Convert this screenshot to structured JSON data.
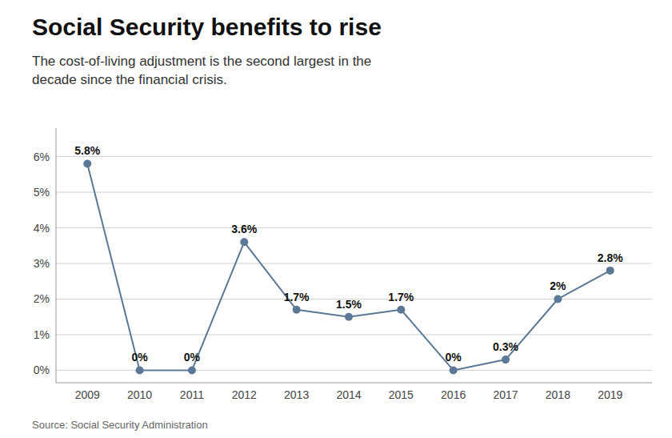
{
  "chart_data": {
    "type": "line",
    "title": "Social Security benefits to rise",
    "subtitle": "The cost-of-living adjustment is the second largest in the\ndecade since the financial crisis.",
    "source": "Source: Social Security Administration",
    "x": [
      2009,
      2010,
      2011,
      2012,
      2013,
      2014,
      2015,
      2016,
      2017,
      2018,
      2019
    ],
    "values": [
      5.8,
      0.0,
      0.0,
      3.6,
      1.7,
      1.5,
      1.7,
      0.0,
      0.3,
      2.0,
      2.8
    ],
    "value_labels": [
      "5.8%",
      "0%",
      "0%",
      "3.6%",
      "1.7%",
      "1.5%",
      "1.7%",
      "0%",
      "0.3%",
      "2%",
      "2.8%"
    ],
    "data_labels": true,
    "color": "#5b7896",
    "marker": "circle",
    "xlim": [
      2008.4,
      2019.8
    ],
    "xticks": [
      2009,
      2010,
      2011,
      2012,
      2013,
      2014,
      2015,
      2016,
      2017,
      2018,
      2019
    ],
    "ylim": [
      -0.35,
      6.8
    ],
    "yticks": [
      {
        "value": 0,
        "label": "0%"
      },
      {
        "value": 1,
        "label": "1%"
      },
      {
        "value": 2,
        "label": "2%"
      },
      {
        "value": 3,
        "label": "3%"
      },
      {
        "value": 4,
        "label": "4%"
      },
      {
        "value": 5,
        "label": "5%"
      },
      {
        "value": 6,
        "label": "6%"
      }
    ],
    "grid": true
  }
}
